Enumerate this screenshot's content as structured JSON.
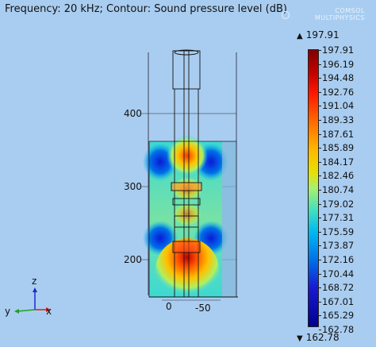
{
  "title": "Frequency: 20 kHz; Contour: Sound pressure level (dB)",
  "brand": {
    "line1": "COMSOL",
    "line2": "MULTIPHYSICS"
  },
  "colorbar": {
    "max_label": "197.91",
    "min_label": "162.78",
    "ticks": [
      "197.91",
      "196.19",
      "194.48",
      "192.76",
      "191.04",
      "189.33",
      "187.61",
      "185.89",
      "184.17",
      "182.46",
      "180.74",
      "179.02",
      "177.31",
      "175.59",
      "173.87",
      "172.16",
      "170.44",
      "168.72",
      "167.01",
      "165.29",
      "162.78"
    ]
  },
  "axes": {
    "y_ticks": [
      "400",
      "300",
      "200"
    ],
    "x_ticks": [
      "0",
      "-50"
    ],
    "triad": {
      "z": "z",
      "y": "y",
      "x": "x"
    }
  },
  "colors": {
    "background": "#a9cdf0"
  }
}
